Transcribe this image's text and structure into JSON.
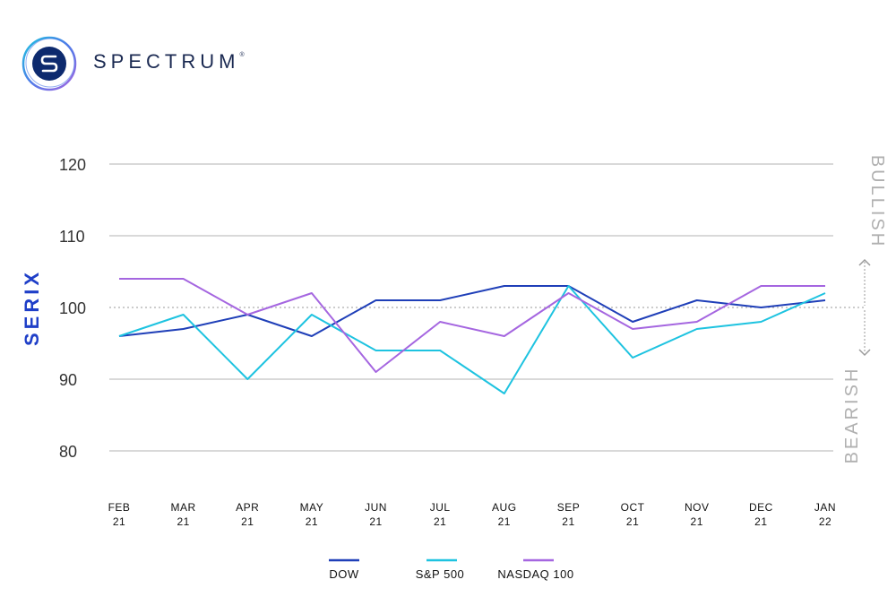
{
  "brand": {
    "name": "SPECTRUM",
    "mark": "®",
    "logo_icon": "spectrum-s-logo-icon"
  },
  "colors": {
    "dow": "#1f3fb8",
    "sp500": "#1ec3e0",
    "nasdaq": "#a566e0",
    "ylabel": "#1f3fc8",
    "grid": "#b3b3b3",
    "side": "#b0b0b0"
  },
  "chart_data": {
    "type": "line",
    "ylabel": "SERIX",
    "ylim": [
      80,
      120
    ],
    "yticks": [
      80,
      90,
      100,
      110,
      120
    ],
    "reference_line": 100,
    "grid": true,
    "legend_position": "bottom",
    "categories": [
      {
        "month": "FEB",
        "year": "21"
      },
      {
        "month": "MAR",
        "year": "21"
      },
      {
        "month": "APR",
        "year": "21"
      },
      {
        "month": "MAY",
        "year": "21"
      },
      {
        "month": "JUN",
        "year": "21"
      },
      {
        "month": "JUL",
        "year": "21"
      },
      {
        "month": "AUG",
        "year": "21"
      },
      {
        "month": "SEP",
        "year": "21"
      },
      {
        "month": "OCT",
        "year": "21"
      },
      {
        "month": "NOV",
        "year": "21"
      },
      {
        "month": "DEC",
        "year": "21"
      },
      {
        "month": "JAN",
        "year": "22"
      }
    ],
    "series": [
      {
        "name": "DOW",
        "color": "#1f3fb8",
        "values": [
          96,
          97,
          99,
          96,
          101,
          101,
          103,
          103,
          98,
          101,
          100,
          101
        ]
      },
      {
        "name": "S&P 500",
        "color": "#1ec3e0",
        "values": [
          96,
          99,
          90,
          99,
          94,
          94,
          88,
          103,
          93,
          97,
          98,
          102
        ]
      },
      {
        "name": "NASDAQ 100",
        "color": "#a566e0",
        "values": [
          104,
          104,
          99,
          102,
          91,
          98,
          96,
          102,
          97,
          98,
          103,
          103
        ]
      }
    ],
    "side_labels": {
      "upper": "BULLISH",
      "lower": "BEARISH"
    }
  }
}
